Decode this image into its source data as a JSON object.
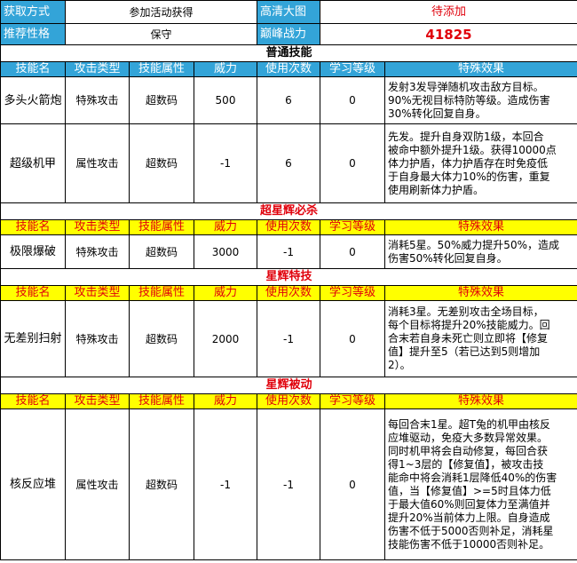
{
  "info": {
    "obtain_label": "获取方式",
    "obtain_value": "参加活动获得",
    "hd_label": "高清大图",
    "hd_value": "待添加",
    "nature_label": "推荐性格",
    "nature_value": "保守",
    "peak_label": "巅峰战力",
    "peak_value": "41825"
  },
  "headers": [
    "技能名",
    "攻击类型",
    "技能属性",
    "威力",
    "使用次数",
    "学习等级",
    "特殊效果"
  ],
  "sections": [
    {
      "title": "普通技能",
      "skills": [
        {
          "name": "多头火箭炮",
          "type": "特殊攻击",
          "attr": "超数码",
          "power": "500",
          "uses": "6",
          "level": "0",
          "effect": "发射3发导弹随机攻击敌方目标。\n90%无视目标特防等级。造成伤害\n30%转化回复自身。"
        },
        {
          "name": "超级机甲",
          "type": "属性攻击",
          "attr": "超数码",
          "power": "-1",
          "uses": "6",
          "level": "0",
          "effect": "先发。提升自身双防1级，本回合\n被命中额外提升1级。获得10000点\n体力护盾，体力护盾存在时免疫低\n于自身最大体力10%的伤害，重复\n使用刷新体力护盾。"
        }
      ]
    },
    {
      "title": "超星辉必杀",
      "skills": [
        {
          "name": "极限爆破",
          "type": "特殊攻击",
          "attr": "超数码",
          "power": "3000",
          "uses": "-1",
          "level": "0",
          "effect": "消耗5星。50%威力提升50%，造成\n伤害50%转化回复自身。"
        }
      ]
    },
    {
      "title": "星辉特技",
      "skills": [
        {
          "name": "无差别扫射",
          "type": "特殊攻击",
          "attr": "超数码",
          "power": "2000",
          "uses": "-1",
          "level": "0",
          "effect": "消耗3星。无差别攻击全场目标，\n每个目标将提升20%技能威力。回\n合末若自身未死亡则立即将【修复\n值】提升至5（若已达到5则增加\n2）。"
        }
      ]
    },
    {
      "title": "星辉被动",
      "skills": [
        {
          "name": "核反应堆",
          "type": "属性攻击",
          "attr": "超数码",
          "power": "-1",
          "uses": "-1",
          "level": "0",
          "effect": "每回合末1星。超T兔的机甲由核反\n应堆驱动，免疫大多数异常效果。\n同时机甲将会自动修复，每回合获\n得1~3层的【修复值】，被攻击技\n能命中将会消耗1层降低40%的伤害\n值，当【修复值】>=5时且体力低\n于最大值60%则回复体力至满值并\n提升20%当前体力上限。自身造成\n伤害不低于5000否则补足，消耗星\n技能伤害不低于10000否则补足。"
        }
      ]
    }
  ],
  "colors": {
    "label_blue": "#33a4d8",
    "header_yellow": "#ffff00",
    "accent_red": "#e0000b"
  }
}
